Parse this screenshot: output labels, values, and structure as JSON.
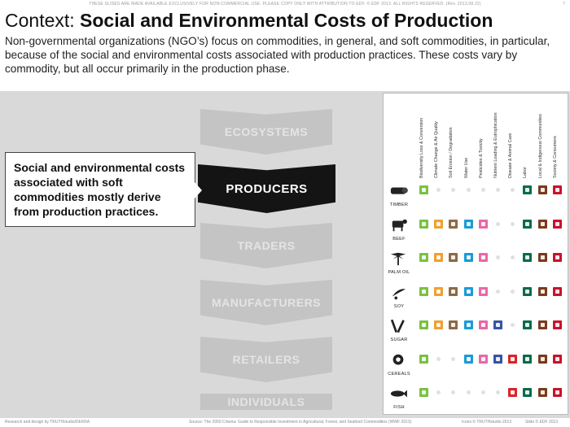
{
  "header": {
    "notice": "THESE SLIDES ARE MADE AVAILABLE EXCLUSIVELY FOR NON-COMMERCIAL USE. PLEASE COPY ONLY WITH ATTRIBUTION TO EDF. © EDF 2013. ALL RIGHTS RESERVED. (Rev. 2013.08.22)",
    "page_number": "7"
  },
  "title": {
    "prefix": "Context:",
    "main": "Social and Environmental Costs of Production"
  },
  "intro": "Non-governmental organizations (NGO’s) focus on commodities, in general, and soft commodities, in particular, because of the social and environmental costs associated with production practices. These costs vary by commodity, but all occur primarily in the production phase.",
  "callout": "Social and environmental costs associated with soft commodities mostly derive from production practices.",
  "chain": [
    "ECOSYSTEMS",
    "PRODUCERS",
    "TRADERS",
    "MANUFACTURERS",
    "RETAILERS",
    "INDIVIDUALS"
  ],
  "chain_active": "PRODUCERS",
  "matrix": {
    "columns": [
      "Biodiversity Loss & Conversion",
      "Climate Change & Air Quality",
      "Soil Erosion / Degradation",
      "Water Use",
      "Pesticides & Toxicity",
      "Nutrient Loading & Eutrophication",
      "Disease & Animal Care",
      "Labor",
      "Local & Indigenous Communities",
      "Society & Consumers"
    ],
    "column_colors": [
      "#7ac143",
      "#f0a030",
      "#8b6a45",
      "#1b9bd7",
      "#e86aa6",
      "#3953a4",
      "#d7262a",
      "#0b6b4a",
      "#7a3b1d",
      "#c9122c"
    ],
    "rows": [
      {
        "label": "TIMBER",
        "icon": "timber-icon",
        "cells": [
          1,
          0,
          0,
          0,
          0,
          0,
          0,
          1,
          1,
          1
        ]
      },
      {
        "label": "BEEF",
        "icon": "beef-icon",
        "cells": [
          1,
          1,
          1,
          1,
          1,
          0,
          0,
          1,
          1,
          1
        ]
      },
      {
        "label": "PALM OIL",
        "icon": "palm-oil-icon",
        "cells": [
          1,
          1,
          1,
          1,
          1,
          0,
          0,
          1,
          1,
          1
        ]
      },
      {
        "label": "SOY",
        "icon": "soy-icon",
        "cells": [
          1,
          1,
          1,
          1,
          1,
          0,
          0,
          1,
          1,
          1
        ]
      },
      {
        "label": "SUGAR",
        "icon": "sugar-icon",
        "cells": [
          1,
          1,
          1,
          1,
          1,
          1,
          0,
          1,
          1,
          1
        ]
      },
      {
        "label": "CEREALS",
        "icon": "cereals-icon",
        "cells": [
          1,
          0,
          0,
          1,
          1,
          1,
          1,
          1,
          1,
          1
        ]
      },
      {
        "label": "FISH",
        "icon": "fish-icon",
        "cells": [
          1,
          0,
          0,
          0,
          0,
          0,
          1,
          1,
          1,
          1
        ]
      }
    ]
  },
  "footer": {
    "left": "Research and design by TRUTHstudio/DEKRA",
    "center": "Source: The 2050 Criteria: Guide to Responsible Investment in Agricultural, Forest, and Seafood Commodities (WWF 2013)",
    "icons": "Icons © TRUTHstudio 2013",
    "right": "Slide © EDF 2013"
  }
}
